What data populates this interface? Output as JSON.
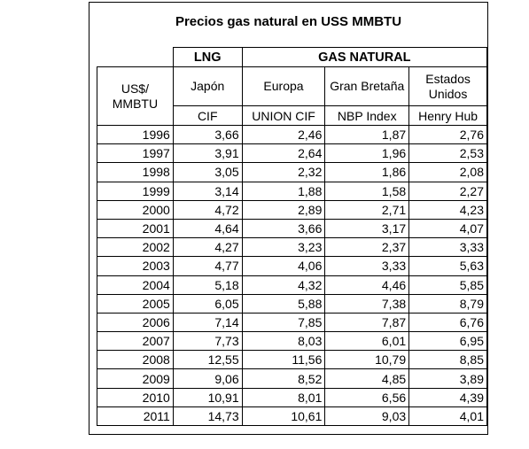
{
  "title": "Precios gas natural en USS MMBTU",
  "header": {
    "group_lng": "LNG",
    "group_gas": "GAS NATURAL",
    "unit_label": "US$/ MMBTU",
    "col_japon": "Japón",
    "col_europa": "Europa",
    "col_gran_bretana": "Gran Bretaña",
    "col_estados_unidos": "Estados Unidos",
    "sub_japon": "CIF",
    "sub_europa": "UNION CIF",
    "sub_gran_bretana": "NBP Index",
    "sub_estados_unidos": "Henry Hub"
  },
  "rows": [
    {
      "year": "1996",
      "japon": "3,66",
      "europa": "2,46",
      "gb": "1,87",
      "us": "2,76"
    },
    {
      "year": "1997",
      "japon": "3,91",
      "europa": "2,64",
      "gb": "1,96",
      "us": "2,53"
    },
    {
      "year": "1998",
      "japon": "3,05",
      "europa": "2,32",
      "gb": "1,86",
      "us": "2,08"
    },
    {
      "year": "1999",
      "japon": "3,14",
      "europa": "1,88",
      "gb": "1,58",
      "us": "2,27"
    },
    {
      "year": "2000",
      "japon": "4,72",
      "europa": "2,89",
      "gb": "2,71",
      "us": "4,23"
    },
    {
      "year": "2001",
      "japon": "4,64",
      "europa": "3,66",
      "gb": "3,17",
      "us": "4,07"
    },
    {
      "year": "2002",
      "japon": "4,27",
      "europa": "3,23",
      "gb": "2,37",
      "us": "3,33"
    },
    {
      "year": "2003",
      "japon": "4,77",
      "europa": "4,06",
      "gb": "3,33",
      "us": "5,63"
    },
    {
      "year": "2004",
      "japon": "5,18",
      "europa": "4,32",
      "gb": "4,46",
      "us": "5,85"
    },
    {
      "year": "2005",
      "japon": "6,05",
      "europa": "5,88",
      "gb": "7,38",
      "us": "8,79"
    },
    {
      "year": "2006",
      "japon": "7,14",
      "europa": "7,85",
      "gb": "7,87",
      "us": "6,76"
    },
    {
      "year": "2007",
      "japon": "7,73",
      "europa": "8,03",
      "gb": "6,01",
      "us": "6,95"
    },
    {
      "year": "2008",
      "japon": "12,55",
      "europa": "11,56",
      "gb": "10,79",
      "us": "8,85"
    },
    {
      "year": "2009",
      "japon": "9,06",
      "europa": "8,52",
      "gb": "4,85",
      "us": "3,89"
    },
    {
      "year": "2010",
      "japon": "10,91",
      "europa": "8,01",
      "gb": "6,56",
      "us": "4,39"
    },
    {
      "year": "2011",
      "japon": "14,73",
      "europa": "10,61",
      "gb": "9,03",
      "us": "4,01"
    }
  ]
}
